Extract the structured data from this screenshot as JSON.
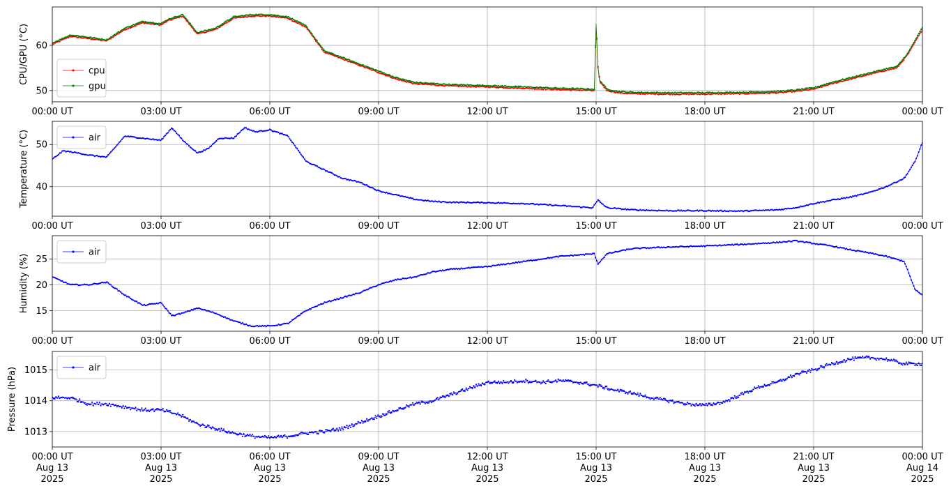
{
  "chart_data": [
    {
      "type": "line",
      "ylabel": "CPU/GPU (°C)",
      "ylim": [
        47.5,
        68.5
      ],
      "yticks": [
        50,
        60
      ],
      "xtick_labels": [
        "00:00 UT",
        "03:00 UT",
        "06:00 UT",
        "09:00 UT",
        "12:00 UT",
        "15:00 UT",
        "18:00 UT",
        "21:00 UT",
        "00:00 UT"
      ],
      "x_hours": [
        0,
        0.5,
        1,
        1.5,
        2,
        2.5,
        3,
        3.2,
        3.6,
        4,
        4.5,
        5,
        5.5,
        6,
        6.5,
        7,
        7.5,
        8,
        8.5,
        9,
        9.5,
        10,
        11,
        12,
        13,
        14,
        14.95,
        15.0,
        15.05,
        15.1,
        15.3,
        15.6,
        16,
        17,
        18,
        19,
        20,
        20.5,
        21,
        21.5,
        22,
        22.5,
        23,
        23.3,
        23.6,
        24
      ],
      "grid": true,
      "legend_position": "lower-left",
      "series": [
        {
          "name": "cpu",
          "color": "#ff0000",
          "values": [
            60.2,
            62,
            61.5,
            61,
            63.5,
            65,
            64.5,
            65.5,
            66.5,
            62.5,
            63.5,
            66,
            66.5,
            66.5,
            66,
            64,
            58.5,
            57,
            55.5,
            54,
            52.5,
            51.5,
            51,
            50.8,
            50.5,
            50.2,
            50,
            64.5,
            55,
            52,
            50,
            49.5,
            49.3,
            49.2,
            49.2,
            49.3,
            49.5,
            49.8,
            50.3,
            51.5,
            52.5,
            53.5,
            54.5,
            55,
            58,
            63.5
          ]
        },
        {
          "name": "gpu",
          "color": "#008000",
          "values": [
            60.5,
            62.3,
            61.8,
            61.2,
            63.8,
            65.3,
            64.8,
            65.8,
            66.8,
            62.8,
            63.8,
            66.3,
            66.8,
            66.8,
            66.3,
            64.3,
            58.8,
            57.3,
            55.8,
            54.3,
            52.8,
            51.8,
            51.3,
            51.1,
            50.8,
            50.5,
            50.3,
            64.8,
            55.3,
            52.3,
            50.3,
            49.8,
            49.6,
            49.5,
            49.5,
            49.6,
            49.8,
            50.1,
            50.6,
            51.8,
            52.8,
            53.8,
            54.8,
            55.3,
            58.3,
            64
          ]
        }
      ]
    },
    {
      "type": "line",
      "ylabel": "Temperature (°C)",
      "ylim": [
        33,
        55.5
      ],
      "yticks": [
        40,
        50
      ],
      "xtick_labels": [
        "00:00 UT",
        "03:00 UT",
        "06:00 UT",
        "09:00 UT",
        "12:00 UT",
        "15:00 UT",
        "18:00 UT",
        "21:00 UT",
        "00:00 UT"
      ],
      "x_hours": [
        0,
        0.3,
        0.7,
        1,
        1.5,
        2,
        2.5,
        3,
        3.3,
        3.6,
        4,
        4.3,
        4.6,
        5,
        5.3,
        5.6,
        6,
        6.5,
        7,
        7.5,
        8,
        8.5,
        9,
        9.5,
        10,
        10.5,
        11,
        12,
        13,
        14,
        14.9,
        15.05,
        15.3,
        16,
        17,
        18,
        19,
        20,
        20.5,
        21,
        21.5,
        22,
        22.5,
        23,
        23.5,
        23.8,
        24
      ],
      "grid": true,
      "legend_position": "upper-left",
      "series": [
        {
          "name": "air",
          "color": "#0000ff",
          "values": [
            46.5,
            48.5,
            48,
            47.5,
            47,
            52,
            51.5,
            51,
            54,
            51,
            48,
            49,
            51.5,
            51.5,
            54,
            53,
            53.5,
            52,
            46,
            44,
            42,
            41,
            39,
            38,
            37,
            36.5,
            36.3,
            36.2,
            36,
            35.5,
            35,
            36.8,
            35,
            34.5,
            34.3,
            34.3,
            34.2,
            34.5,
            35,
            36,
            36.8,
            37.5,
            38.5,
            40,
            42,
            46,
            50.5
          ]
        }
      ]
    },
    {
      "type": "line",
      "ylabel": "Humidity (%)",
      "ylim": [
        11,
        29.5
      ],
      "yticks": [
        15,
        20,
        25
      ],
      "xtick_labels": [
        "00:00 UT",
        "03:00 UT",
        "06:00 UT",
        "09:00 UT",
        "12:00 UT",
        "15:00 UT",
        "18:00 UT",
        "21:00 UT",
        "00:00 UT"
      ],
      "x_hours": [
        0,
        0.5,
        1,
        1.5,
        2,
        2.5,
        3,
        3.3,
        3.6,
        4,
        4.5,
        5,
        5.5,
        6,
        6.5,
        7,
        7.5,
        8,
        8.5,
        9,
        9.5,
        10,
        10.5,
        11,
        12,
        13,
        14,
        14.95,
        15.05,
        15.3,
        16,
        17,
        18,
        19,
        20,
        20.5,
        21,
        21.5,
        22,
        22.5,
        23,
        23.5,
        23.8,
        24
      ],
      "grid": true,
      "legend_position": "upper-left",
      "series": [
        {
          "name": "air",
          "color": "#0000ff",
          "values": [
            21.5,
            20,
            20,
            20.5,
            18,
            16,
            16.5,
            14,
            14.5,
            15.5,
            14.5,
            13,
            12,
            12,
            12.5,
            15,
            16.5,
            17.5,
            18.5,
            20,
            21,
            21.5,
            22.5,
            23,
            23.5,
            24.5,
            25.5,
            26,
            24,
            26,
            27,
            27.3,
            27.5,
            27.8,
            28.2,
            28.5,
            28,
            27.5,
            26.8,
            26.2,
            25.5,
            24.5,
            19,
            18
          ]
        }
      ]
    },
    {
      "type": "line",
      "ylabel": "Pressure (hPa)",
      "ylim": [
        1012.5,
        1015.6
      ],
      "yticks": [
        1013,
        1014,
        1015
      ],
      "xtick_labels": [
        "00:00 UT\nAug 13\n2025",
        "03:00 UT\nAug 13\n2025",
        "06:00 UT\nAug 13\n2025",
        "09:00 UT\nAug 13\n2025",
        "12:00 UT\nAug 13\n2025",
        "15:00 UT\nAug 13\n2025",
        "18:00 UT\nAug 13\n2025",
        "21:00 UT\nAug 13\n2025",
        "00:00 UT\nAug 14\n2025"
      ],
      "x_hours": [
        0,
        0.5,
        1,
        1.5,
        2,
        2.5,
        3,
        3.5,
        4,
        4.5,
        5,
        5.5,
        6,
        6.5,
        7,
        7.5,
        8,
        8.5,
        9,
        9.5,
        10,
        10.5,
        11,
        11.5,
        12,
        12.5,
        13,
        13.5,
        14,
        14.5,
        15,
        15.5,
        16,
        16.5,
        17,
        17.5,
        18,
        18.5,
        19,
        19.5,
        20,
        20.5,
        21,
        21.5,
        22,
        22.5,
        23,
        23.5,
        24
      ],
      "grid": true,
      "legend_position": "upper-left",
      "series": [
        {
          "name": "air",
          "color": "#0000ff",
          "values": [
            1014.1,
            1014.1,
            1013.9,
            1013.9,
            1013.8,
            1013.7,
            1013.7,
            1013.55,
            1013.25,
            1013.1,
            1012.95,
            1012.85,
            1012.8,
            1012.85,
            1012.95,
            1013.0,
            1013.1,
            1013.3,
            1013.5,
            1013.7,
            1013.9,
            1014.0,
            1014.2,
            1014.4,
            1014.6,
            1014.6,
            1014.65,
            1014.6,
            1014.65,
            1014.6,
            1014.5,
            1014.35,
            1014.25,
            1014.1,
            1014.0,
            1013.9,
            1013.85,
            1013.95,
            1014.2,
            1014.45,
            1014.6,
            1014.85,
            1015.0,
            1015.2,
            1015.35,
            1015.4,
            1015.35,
            1015.2,
            1015.2
          ]
        }
      ]
    }
  ]
}
